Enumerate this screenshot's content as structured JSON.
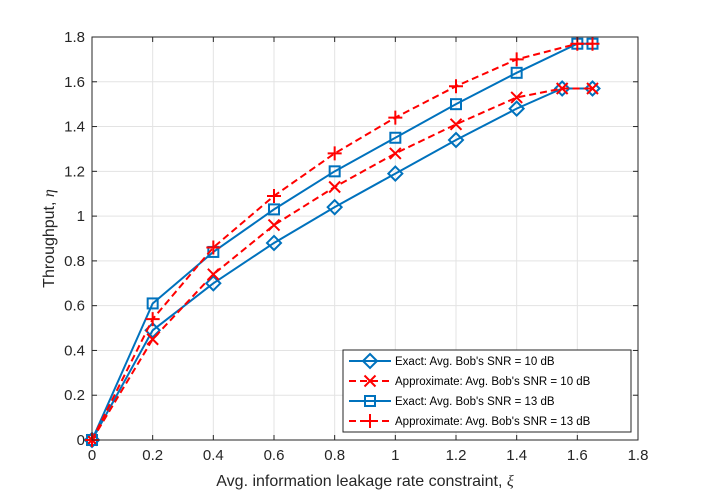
{
  "chart_data": {
    "type": "line",
    "title": "",
    "xlabel": "Avg. information leakage rate constraint, ",
    "xlabel_symbol": "ξ",
    "ylabel": "Throughput, ",
    "ylabel_symbol": "η",
    "xlim": [
      0,
      1.8
    ],
    "ylim": [
      0,
      1.8
    ],
    "xticks": [
      0,
      0.2,
      0.4,
      0.6,
      0.8,
      1,
      1.2,
      1.4,
      1.6,
      1.8
    ],
    "xtick_labels": [
      "0",
      "0.2",
      "0.4",
      "0.6",
      "0.8",
      "1",
      "1.2",
      "1.4",
      "1.6",
      "1.8"
    ],
    "yticks": [
      0,
      0.2,
      0.4,
      0.6,
      0.8,
      1,
      1.2,
      1.4,
      1.6,
      1.8
    ],
    "ytick_labels": [
      "0",
      "0.2",
      "0.4",
      "0.6",
      "0.8",
      "1",
      "1.2",
      "1.4",
      "1.6",
      "1.8"
    ],
    "grid": true,
    "legend_position": "bottom-right",
    "series": [
      {
        "name": "Exact: Avg. Bob's SNR = 10 dB",
        "color": "#0072BD",
        "line": "solid",
        "marker": "diamond",
        "x": [
          0,
          0.2,
          0.4,
          0.6,
          0.8,
          1.0,
          1.2,
          1.4,
          1.55,
          1.65
        ],
        "y": [
          0,
          0.49,
          0.7,
          0.88,
          1.04,
          1.19,
          1.34,
          1.48,
          1.57,
          1.57
        ]
      },
      {
        "name": "Approximate: Avg. Bob's SNR = 10 dB",
        "color": "#FF0000",
        "line": "dashed",
        "marker": "x",
        "x": [
          0,
          0.2,
          0.4,
          0.6,
          0.8,
          1.0,
          1.2,
          1.4,
          1.55,
          1.65
        ],
        "y": [
          0,
          0.45,
          0.74,
          0.96,
          1.13,
          1.28,
          1.41,
          1.53,
          1.57,
          1.57
        ]
      },
      {
        "name": "Exact: Avg. Bob's SNR = 13 dB",
        "color": "#0072BD",
        "line": "solid",
        "marker": "square",
        "x": [
          0,
          0.2,
          0.4,
          0.6,
          0.8,
          1.0,
          1.2,
          1.4,
          1.6,
          1.65
        ],
        "y": [
          0,
          0.61,
          0.84,
          1.03,
          1.2,
          1.35,
          1.5,
          1.64,
          1.77,
          1.77
        ]
      },
      {
        "name": "Approximate: Avg. Bob's SNR = 13 dB",
        "color": "#FF0000",
        "line": "dashed",
        "marker": "plus",
        "x": [
          0,
          0.2,
          0.4,
          0.6,
          0.8,
          1.0,
          1.2,
          1.4,
          1.6,
          1.65
        ],
        "y": [
          0,
          0.54,
          0.86,
          1.09,
          1.28,
          1.44,
          1.58,
          1.7,
          1.77,
          1.77
        ]
      }
    ]
  }
}
